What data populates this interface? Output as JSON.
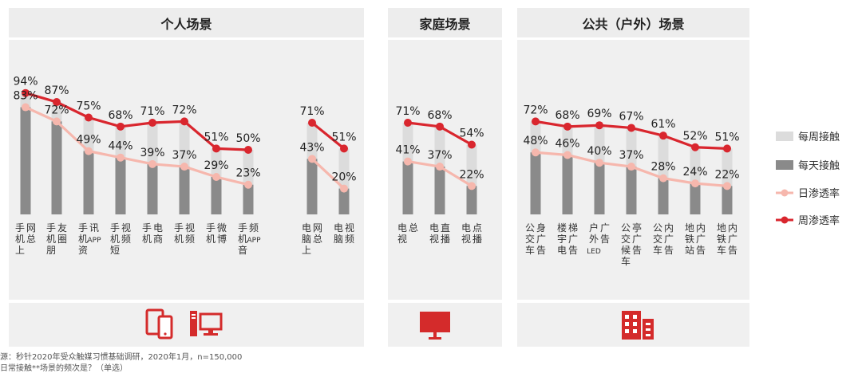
{
  "panels": [
    {
      "title": "个人场景"
    },
    {
      "title": "家庭场景"
    },
    {
      "title": "公共（户外）场景"
    }
  ],
  "legend": {
    "weekly_contact": "每周接触",
    "daily_contact": "每天接触",
    "daily_penetration": "日渗透率",
    "weekly_penetration": "周渗透率"
  },
  "footnotes": [
    "源：秒针2020年受众触媒习惯基础调研，2020年1月，n=150,000",
    "日常接触**场景的频次是？（单选）"
  ],
  "colors": {
    "weekly_bar": "#dcdcdc",
    "daily_bar": "#8a8a8a",
    "daily_line": "#f6b7ad",
    "weekly_line": "#d9262e",
    "icon_red": "#d42b2b"
  },
  "icons": [
    "phone-tablet-icon",
    "desktop-computer-icon",
    "tv-monitor-icon",
    "office-building-icon"
  ],
  "chart_data": {
    "type": "bar",
    "x": [
      "手机上网总",
      "手机朋友圈",
      "手机资讯APP",
      "手机短视频",
      "手机电商",
      "手机视频",
      "手机微博",
      "手机音频APP",
      "电脑上网总",
      "电脑视频",
      "电视总",
      "电视直播",
      "电视点播",
      "公交车身广告",
      "楼宇电梯广告",
      "户外LED广告",
      "公交候车亭广告",
      "公交车内广告",
      "地铁站内广告",
      "地铁车内广告"
    ],
    "ylim": [
      0,
      100
    ],
    "series": [
      {
        "name": "周渗透率",
        "values": [
          94,
          87,
          75,
          68,
          71,
          72,
          51,
          50,
          71,
          51,
          71,
          68,
          54,
          72,
          68,
          69,
          67,
          61,
          52,
          51
        ]
      },
      {
        "name": "日渗透率",
        "values": [
          83,
          72,
          49,
          44,
          39,
          37,
          29,
          23,
          43,
          20,
          41,
          37,
          22,
          48,
          46,
          40,
          37,
          28,
          24,
          22
        ]
      }
    ],
    "point_labels": {
      "weekly": [
        "94%",
        "87%",
        "75%",
        "68%",
        "71%",
        "72%",
        "51%",
        "50%",
        "71%",
        "51%",
        "71%",
        "68%",
        "54%",
        "72%",
        "68%",
        "69%",
        "67%",
        "61%",
        "52%",
        "51%"
      ],
      "daily": [
        "83%",
        "72%",
        "49%",
        "44%",
        "39%",
        "37%",
        "29%",
        "23%",
        "43%",
        "20%",
        "41%",
        "37%",
        "22%",
        "48%",
        "46%",
        "40%",
        "37%",
        "28%",
        "24%",
        "22%"
      ]
    }
  }
}
